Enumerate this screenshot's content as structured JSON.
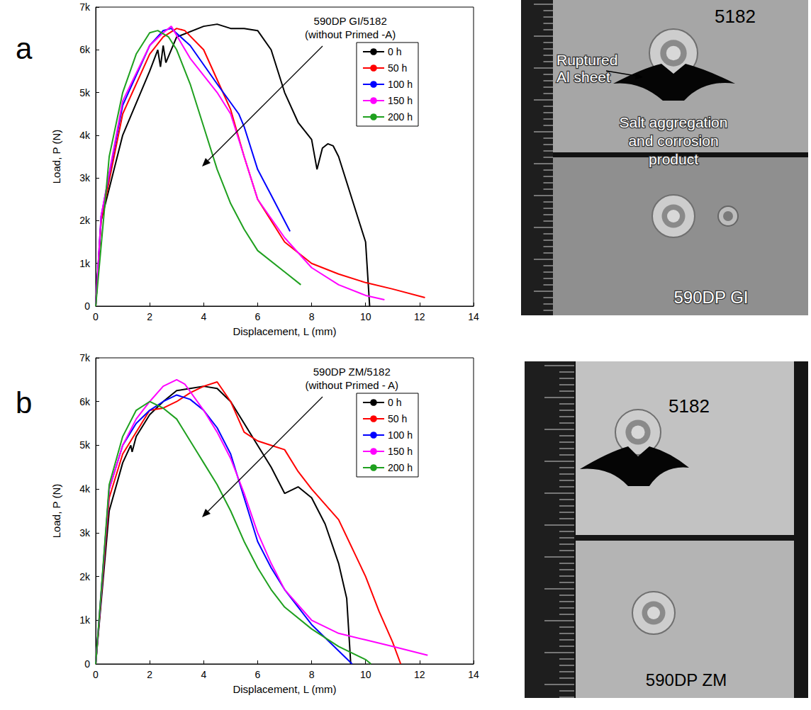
{
  "chart_data": [
    {
      "type": "line",
      "panel": "a",
      "annotation": [
        "590DP GI/5182",
        "(without Primed -A)"
      ],
      "x_label": "Displacement, L (mm)",
      "y_label": "Load, P (N)",
      "xlim": [
        0,
        14
      ],
      "xticks": [
        0,
        2,
        4,
        6,
        8,
        10,
        12,
        14
      ],
      "ylim": [
        0,
        7000
      ],
      "yticks": [
        0,
        {
          "value": 1000,
          "label": "1k"
        },
        {
          "value": 2000,
          "label": "2k"
        },
        {
          "value": 3000,
          "label": "3k"
        },
        {
          "value": 4000,
          "label": "4k"
        },
        {
          "value": 5000,
          "label": "5k"
        },
        {
          "value": 6000,
          "label": "6k"
        },
        {
          "value": 7000,
          "label": "7k"
        }
      ],
      "grid": false,
      "legend": "upper right",
      "series": [
        {
          "name": "0 h",
          "color": "#000000",
          "x": [
            0,
            0.2,
            1,
            2,
            2.3,
            2.4,
            2.5,
            2.6,
            3,
            4,
            4.5,
            5,
            5.5,
            6,
            6.5,
            7,
            7.5,
            8,
            8.2,
            8.4,
            8.6,
            8.8,
            9,
            9.5,
            10,
            10.1,
            10.15
          ],
          "values": [
            0,
            2000,
            4000,
            5500,
            6000,
            5600,
            6100,
            5700,
            6300,
            6550,
            6600,
            6500,
            6500,
            6450,
            6000,
            5000,
            4300,
            3900,
            3200,
            3700,
            3800,
            3750,
            3500,
            2500,
            1500,
            500,
            0
          ]
        },
        {
          "name": "50 h",
          "color": "#ff0000",
          "x": [
            0,
            0.2,
            1,
            2,
            2.5,
            3,
            3.3,
            4,
            4.5,
            5,
            5.5,
            6,
            7,
            8,
            9,
            10,
            11,
            12.2
          ],
          "values": [
            0,
            2000,
            4500,
            5900,
            6300,
            6500,
            6450,
            6000,
            5300,
            4600,
            3500,
            2500,
            1500,
            1000,
            750,
            550,
            400,
            200
          ]
        },
        {
          "name": "100 h",
          "color": "#0000ff",
          "x": [
            0,
            0.2,
            1,
            2,
            2.5,
            2.8,
            3.5,
            4.5,
            5.3,
            5.5,
            6,
            6.5,
            7.2
          ],
          "values": [
            0,
            2100,
            4700,
            6100,
            6450,
            6500,
            6100,
            5200,
            4500,
            4200,
            3200,
            2600,
            1750
          ]
        },
        {
          "name": "150 h",
          "color": "#ff00ff",
          "x": [
            0,
            0.2,
            1,
            2,
            2.5,
            2.8,
            3.5,
            4.5,
            5,
            5.5,
            6,
            7,
            8,
            9,
            10,
            10.7
          ],
          "values": [
            0,
            2100,
            4800,
            6100,
            6400,
            6550,
            5800,
            5000,
            4500,
            3500,
            2500,
            1600,
            900,
            500,
            250,
            150
          ]
        },
        {
          "name": "200 h",
          "color": "#1fa01f",
          "x": [
            0,
            0.5,
            1,
            1.5,
            2,
            2.3,
            2.7,
            3,
            3.5,
            4,
            4.5,
            5,
            5.5,
            6,
            7,
            7.6
          ],
          "values": [
            0,
            3500,
            5000,
            5900,
            6400,
            6450,
            6300,
            6000,
            5200,
            4200,
            3200,
            2400,
            1800,
            1300,
            800,
            500
          ]
        }
      ]
    },
    {
      "type": "line",
      "panel": "b",
      "annotation": [
        "590DP ZM/5182",
        "(without Primed - A)"
      ],
      "x_label": "Displacement, L (mm)",
      "y_label": "Load, P (N)",
      "xlim": [
        0,
        14
      ],
      "xticks": [
        0,
        2,
        4,
        6,
        8,
        10,
        12,
        14
      ],
      "ylim": [
        0,
        7000
      ],
      "yticks": [
        0,
        {
          "value": 1000,
          "label": "1k"
        },
        {
          "value": 2000,
          "label": "2k"
        },
        {
          "value": 3000,
          "label": "3k"
        },
        {
          "value": 4000,
          "label": "4k"
        },
        {
          "value": 5000,
          "label": "5k"
        },
        {
          "value": 6000,
          "label": "6k"
        },
        {
          "value": 7000,
          "label": "7k"
        }
      ],
      "grid": false,
      "legend": "upper right",
      "series": [
        {
          "name": "0 h",
          "color": "#000000",
          "x": [
            0,
            0.5,
            1,
            1.3,
            1.35,
            1.5,
            2,
            2.5,
            3,
            3.5,
            4,
            4.5,
            5,
            5.5,
            6,
            6.5,
            7,
            7.5,
            8,
            8.5,
            9,
            9.3,
            9.45
          ],
          "values": [
            0,
            3500,
            4600,
            5000,
            4850,
            5200,
            5700,
            6000,
            6250,
            6300,
            6350,
            6300,
            6000,
            5500,
            5000,
            4500,
            3900,
            4050,
            3800,
            3200,
            2300,
            1500,
            0
          ]
        },
        {
          "name": "50 h",
          "color": "#ff0000",
          "x": [
            0,
            0.5,
            1,
            2,
            2.5,
            3,
            3.5,
            4,
            4.5,
            5,
            5.5,
            6,
            6.5,
            7,
            7.5,
            8,
            9,
            10,
            10.5,
            11,
            11.3
          ],
          "values": [
            0,
            3800,
            4800,
            5800,
            5850,
            6000,
            6200,
            6350,
            6450,
            6000,
            5300,
            5100,
            5000,
            4900,
            4400,
            4000,
            3300,
            2000,
            1200,
            500,
            0
          ]
        },
        {
          "name": "100 h",
          "color": "#0000ff",
          "x": [
            0,
            0.5,
            1,
            1.5,
            2,
            2.5,
            3,
            3.5,
            4,
            4.5,
            5,
            5.5,
            6,
            6.5,
            7,
            8,
            9,
            9.5
          ],
          "values": [
            0,
            4000,
            5000,
            5500,
            5800,
            6000,
            6150,
            6050,
            5800,
            5400,
            4800,
            3800,
            2800,
            2200,
            1700,
            900,
            300,
            0
          ]
        },
        {
          "name": "150 h",
          "color": "#ff00ff",
          "x": [
            0,
            0.5,
            1,
            1.5,
            2,
            2.5,
            3,
            3.3,
            4,
            4.5,
            5,
            5.5,
            6,
            6.5,
            7,
            8,
            9,
            10,
            11,
            12.3
          ],
          "values": [
            0,
            4000,
            5000,
            5600,
            6000,
            6350,
            6500,
            6400,
            5800,
            5300,
            4700,
            3900,
            3000,
            2300,
            1700,
            1000,
            700,
            550,
            400,
            200
          ]
        },
        {
          "name": "200 h",
          "color": "#1fa01f",
          "x": [
            0,
            0.5,
            1,
            1.5,
            2,
            2.5,
            3,
            3.5,
            3.8,
            4,
            4.5,
            5,
            5.5,
            6,
            6.5,
            7,
            8,
            9,
            10,
            10.2
          ],
          "values": [
            0,
            4100,
            5200,
            5800,
            6000,
            5850,
            5600,
            5100,
            4800,
            4600,
            4100,
            3500,
            2800,
            2200,
            1700,
            1300,
            800,
            400,
            100,
            0
          ]
        }
      ]
    }
  ],
  "photos": [
    {
      "top_sheet": "5182",
      "callout": "Ruptured Al sheet",
      "note": "Salt aggregation and corrosion product",
      "bottom_sheet": "590DP GI"
    },
    {
      "top_sheet": "5182",
      "bottom_sheet": "590DP ZM"
    }
  ]
}
